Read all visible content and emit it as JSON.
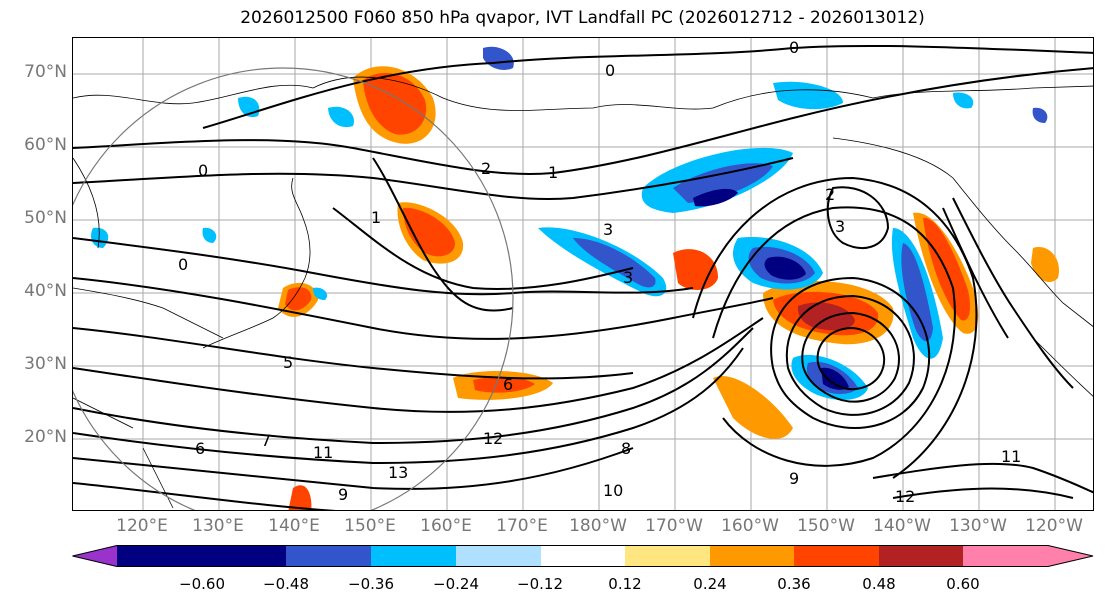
{
  "title": "2026012500 F060 850 hPa qvapor, IVT Landfall PC (2026012712 - 2026013012)",
  "map": {
    "lat_labels": [
      "70°N",
      "60°N",
      "50°N",
      "40°N",
      "30°N",
      "20°N"
    ],
    "lon_labels": [
      "120°E",
      "130°E",
      "140°E",
      "150°E",
      "160°E",
      "170°E",
      "180°W",
      "170°W",
      "160°W",
      "150°W",
      "140°W",
      "130°W",
      "120°W"
    ],
    "contour_labels": [
      "0",
      "0",
      "0",
      "0",
      "1",
      "1",
      "2",
      "2",
      "3",
      "3",
      "3",
      "5",
      "6",
      "6",
      "7",
      "8",
      "9",
      "9",
      "10",
      "11",
      "11",
      "12",
      "12",
      "13"
    ]
  },
  "colorbar": {
    "colors": [
      "#9933cc",
      "#000080",
      "#3355cc",
      "#00bfff",
      "#b0e0ff",
      "#ffffff",
      "#ffe680",
      "#ff9900",
      "#ff4400",
      "#b22222",
      "#ff80aa"
    ],
    "tick_labels": [
      "−0.60",
      "−0.48",
      "−0.36",
      "−0.24",
      "−0.12",
      "0.12",
      "0.24",
      "0.36",
      "0.48",
      "0.60"
    ]
  }
}
